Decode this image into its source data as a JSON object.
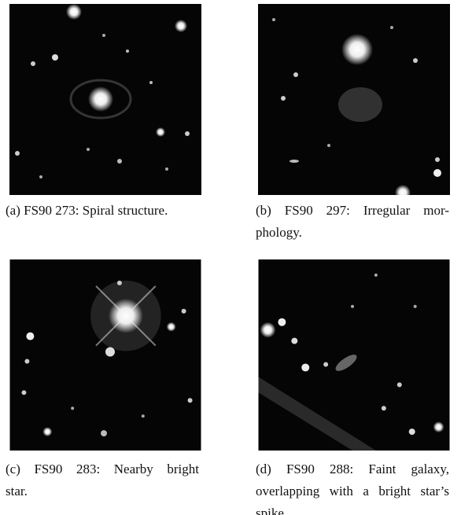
{
  "figures": [
    {
      "caption_lines": [
        "(a) FS90 273: Spiral structure."
      ]
    },
    {
      "caption_lines": [
        "(b) FS90 297: Irregular mor-",
        "phology."
      ]
    },
    {
      "caption_lines": [
        "(c) FS90 283: Nearby bright",
        "star."
      ]
    },
    {
      "caption_lines": [
        "(d) FS90 288: Faint galaxy,",
        "overlapping with a bright star’s",
        "spike."
      ]
    }
  ]
}
